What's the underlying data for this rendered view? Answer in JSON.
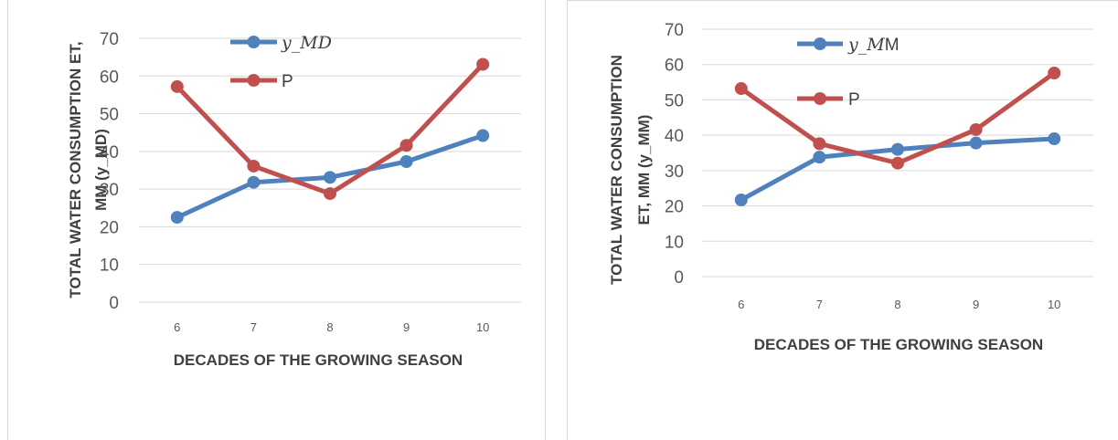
{
  "chart_data": [
    {
      "type": "line",
      "categories": [
        "6",
        "7",
        "8",
        "9",
        "10"
      ],
      "series": [
        {
          "name": "y_MD",
          "values": [
            22.5,
            31.8,
            33.1,
            37.3,
            44.2
          ],
          "color": "#4f81bd"
        },
        {
          "name": "P",
          "values": [
            57.2,
            36.1,
            28.8,
            41.6,
            63.1
          ],
          "color": "#c0504d"
        }
      ],
      "legend_labels": [
        {
          "main": "y_MD",
          "suffix": ""
        },
        {
          "main": "",
          "suffix": "P"
        }
      ],
      "yticks": [
        "0",
        "10",
        "20",
        "30",
        "40",
        "50",
        "60",
        "70"
      ],
      "ylim": [
        0,
        70
      ],
      "ylabel_line1": "TOTAL WATER CONSUMPTION ET,",
      "ylabel_line2": "MM (y_MD)",
      "xlabel": "DECADES OF THE GROWING SEASON",
      "grid": true,
      "legend_position": "top-center"
    },
    {
      "type": "line",
      "categories": [
        "6",
        "7",
        "8",
        "9",
        "10"
      ],
      "series": [
        {
          "name": "y_MM",
          "values": [
            21.7,
            33.8,
            36.0,
            37.8,
            39.0
          ],
          "color": "#4f81bd"
        },
        {
          "name": "P",
          "values": [
            53.2,
            37.6,
            32.1,
            41.6,
            57.6
          ],
          "color": "#c0504d"
        }
      ],
      "legend_labels": [
        {
          "main": "y_M",
          "suffix": "M"
        },
        {
          "main": "",
          "suffix": "P"
        }
      ],
      "yticks": [
        "0",
        "10",
        "20",
        "30",
        "40",
        "50",
        "60",
        "70"
      ],
      "ylim": [
        0,
        70
      ],
      "ylabel_line1": "TOTAL WATER CONSUMPTION",
      "ylabel_line2": "ET, MM (y_MM)",
      "xlabel": "DECADES OF THE GROWING SEASON",
      "grid": true,
      "legend_position": "top-center"
    }
  ]
}
